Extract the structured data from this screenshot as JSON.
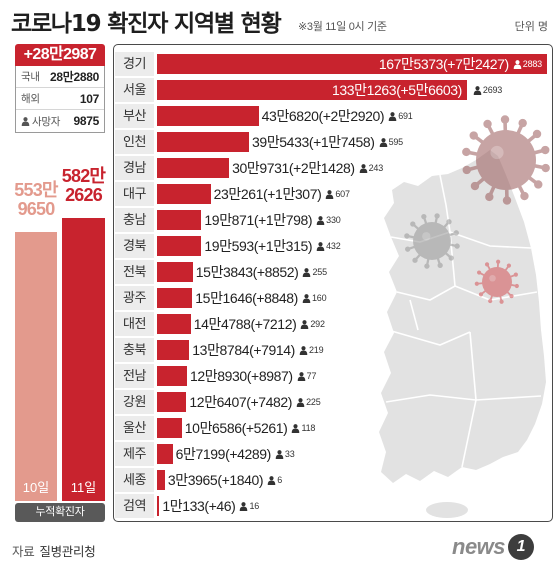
{
  "header": {
    "basis_note": "※3월 11일 0시 기준"
  },
  "summary": {
    "new_cases": "+28만2987",
    "domestic": {
      "label": "국내",
      "value": "28만2880"
    },
    "overseas": {
      "label": "해외",
      "value": "107"
    },
    "deaths": {
      "label": "사망자",
      "value": "9875",
      "icon": "person-icon"
    }
  },
  "cumulative": {
    "label": "누적확진자",
    "bars": [
      {
        "day": "10일",
        "value_line1": "553만",
        "value_line2": "9650",
        "value": 5539650,
        "color": "#e39a8d"
      },
      {
        "day": "11일",
        "value_line1": "582만",
        "value_line2": "2626",
        "value": 5822626,
        "color": "#c8232e"
      }
    ]
  },
  "chart_data": {
    "type": "bar",
    "orientation": "horizontal",
    "title": "코로나19 확진자 지역별 현황",
    "unit_label": "단위 명",
    "categories": [
      "경기",
      "서울",
      "부산",
      "인천",
      "경남",
      "대구",
      "충남",
      "경북",
      "전북",
      "광주",
      "대전",
      "충북",
      "전남",
      "강원",
      "울산",
      "제주",
      "세종",
      "검역"
    ],
    "values": [
      1675373,
      1331263,
      436820,
      395433,
      309731,
      230261,
      190871,
      190593,
      153843,
      151646,
      144788,
      138784,
      128930,
      126407,
      106586,
      67199,
      33965,
      10133
    ],
    "value_labels": [
      "167만5373",
      "133만1263",
      "43만6820",
      "39만5433",
      "30만9731",
      "23만261",
      "19만871",
      "19만593",
      "15만3843",
      "15만1646",
      "14만4788",
      "13만8784",
      "12만8930",
      "12만6407",
      "10만6586",
      "6만7199",
      "3만3965",
      "1만133"
    ],
    "change_labels": [
      "(+7만2427)",
      "(+5만6603)",
      "(+2만2920)",
      "(+1만7458)",
      "(+2만1428)",
      "(+1만307)",
      "(+1만798)",
      "(+1만315)",
      "(+8852)",
      "(+8848)",
      "(+7212)",
      "(+7914)",
      "(+8987)",
      "(+7482)",
      "(+5261)",
      "(+4289)",
      "(+1840)",
      "(+46)"
    ],
    "death_labels": [
      "2883",
      "2693",
      "691",
      "595",
      "243",
      "607",
      "330",
      "432",
      "255",
      "160",
      "292",
      "219",
      "77",
      "225",
      "118",
      "33",
      "6",
      "16"
    ],
    "death_icon": "person-icon",
    "bar_color": "#c8232e"
  },
  "footer": {
    "source_label": "자료",
    "source_name": "질병관리청",
    "logo_text": "news",
    "logo_number": "1"
  }
}
